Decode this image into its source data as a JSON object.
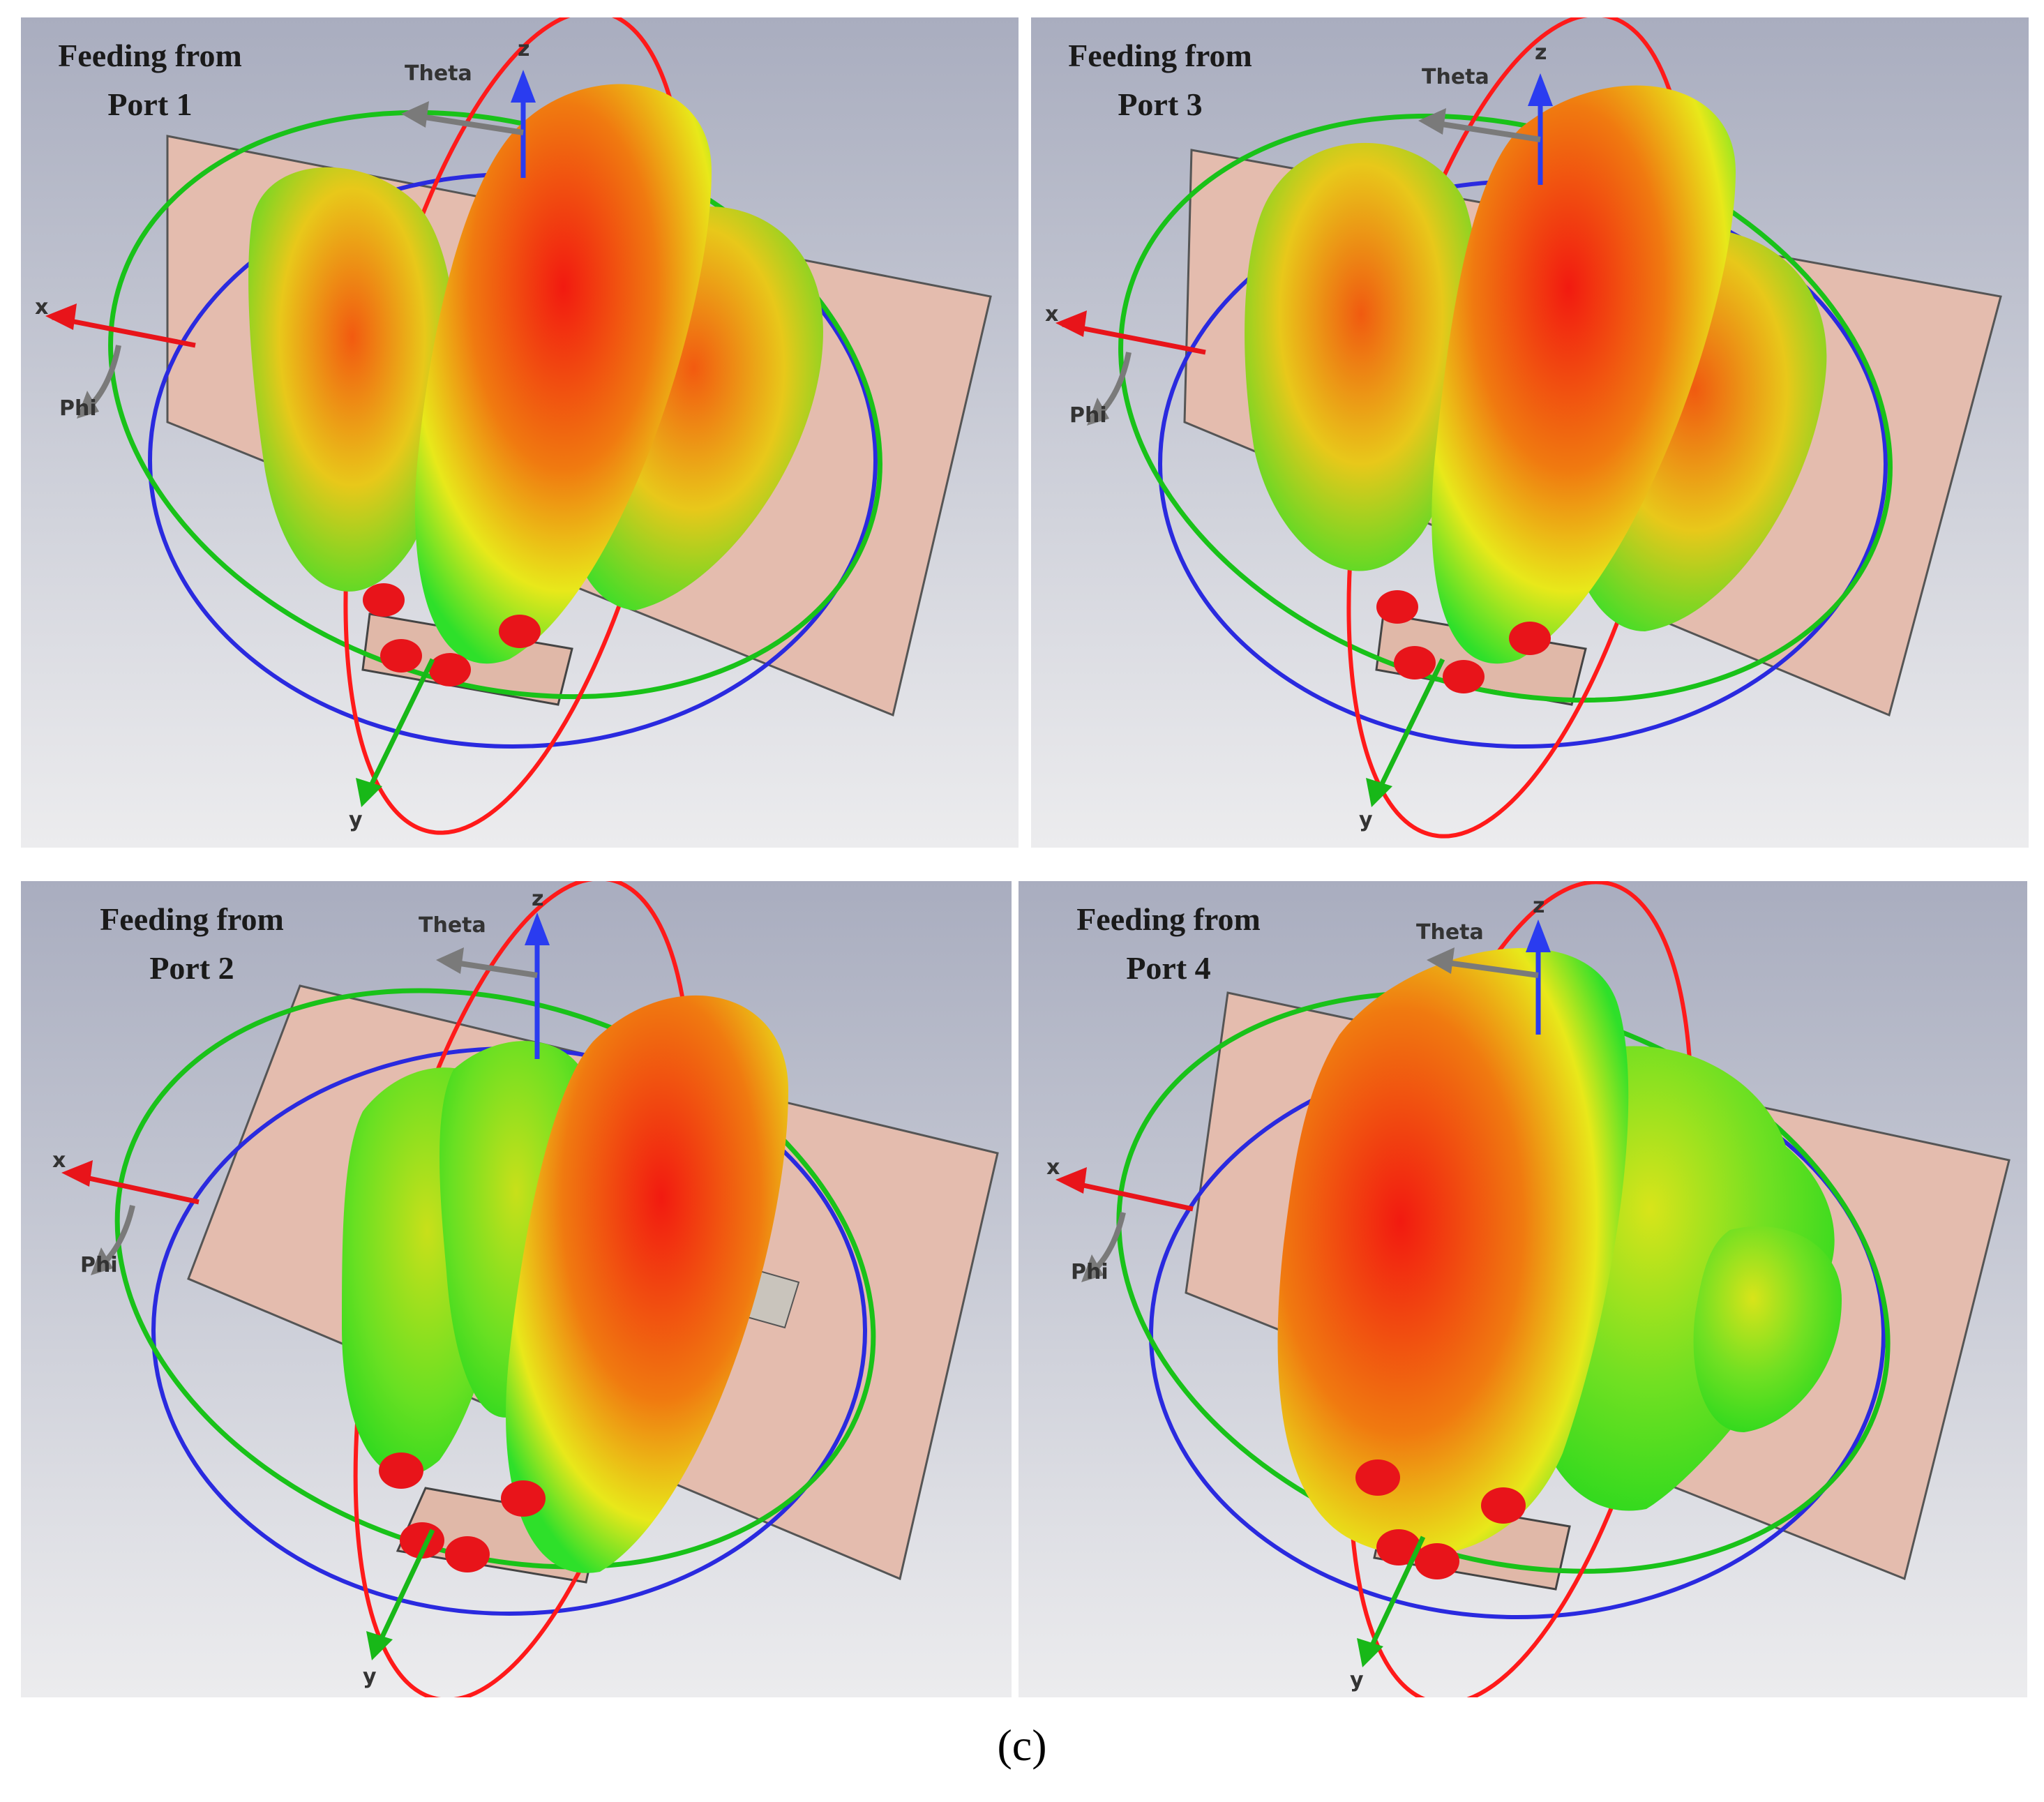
{
  "panels": [
    {
      "title_line1": "Feeding from",
      "title_line2": "Port 1"
    },
    {
      "title_line1": "Feeding from",
      "title_line2": "Port 3"
    },
    {
      "title_line1": "Feeding from",
      "title_line2": "Port 2"
    },
    {
      "title_line1": "Feeding from",
      "title_line2": "Port 4"
    }
  ],
  "axes": {
    "x": "x",
    "y": "y",
    "z": "z",
    "theta": "Theta",
    "phi": "Phi"
  },
  "caption": "(c)",
  "colors": {
    "x_axis": "#e8141a",
    "y_axis": "#18b818",
    "z_axis": "#2a3cf0",
    "ring_red": "#ff1a1a",
    "ring_blue": "#2a2adf",
    "ring_green": "#19c219",
    "ground_plane": "#e4bcae",
    "lobe_peak": "#f21a10",
    "lobe_mid": "#e8e81a",
    "lobe_low": "#21e021"
  }
}
